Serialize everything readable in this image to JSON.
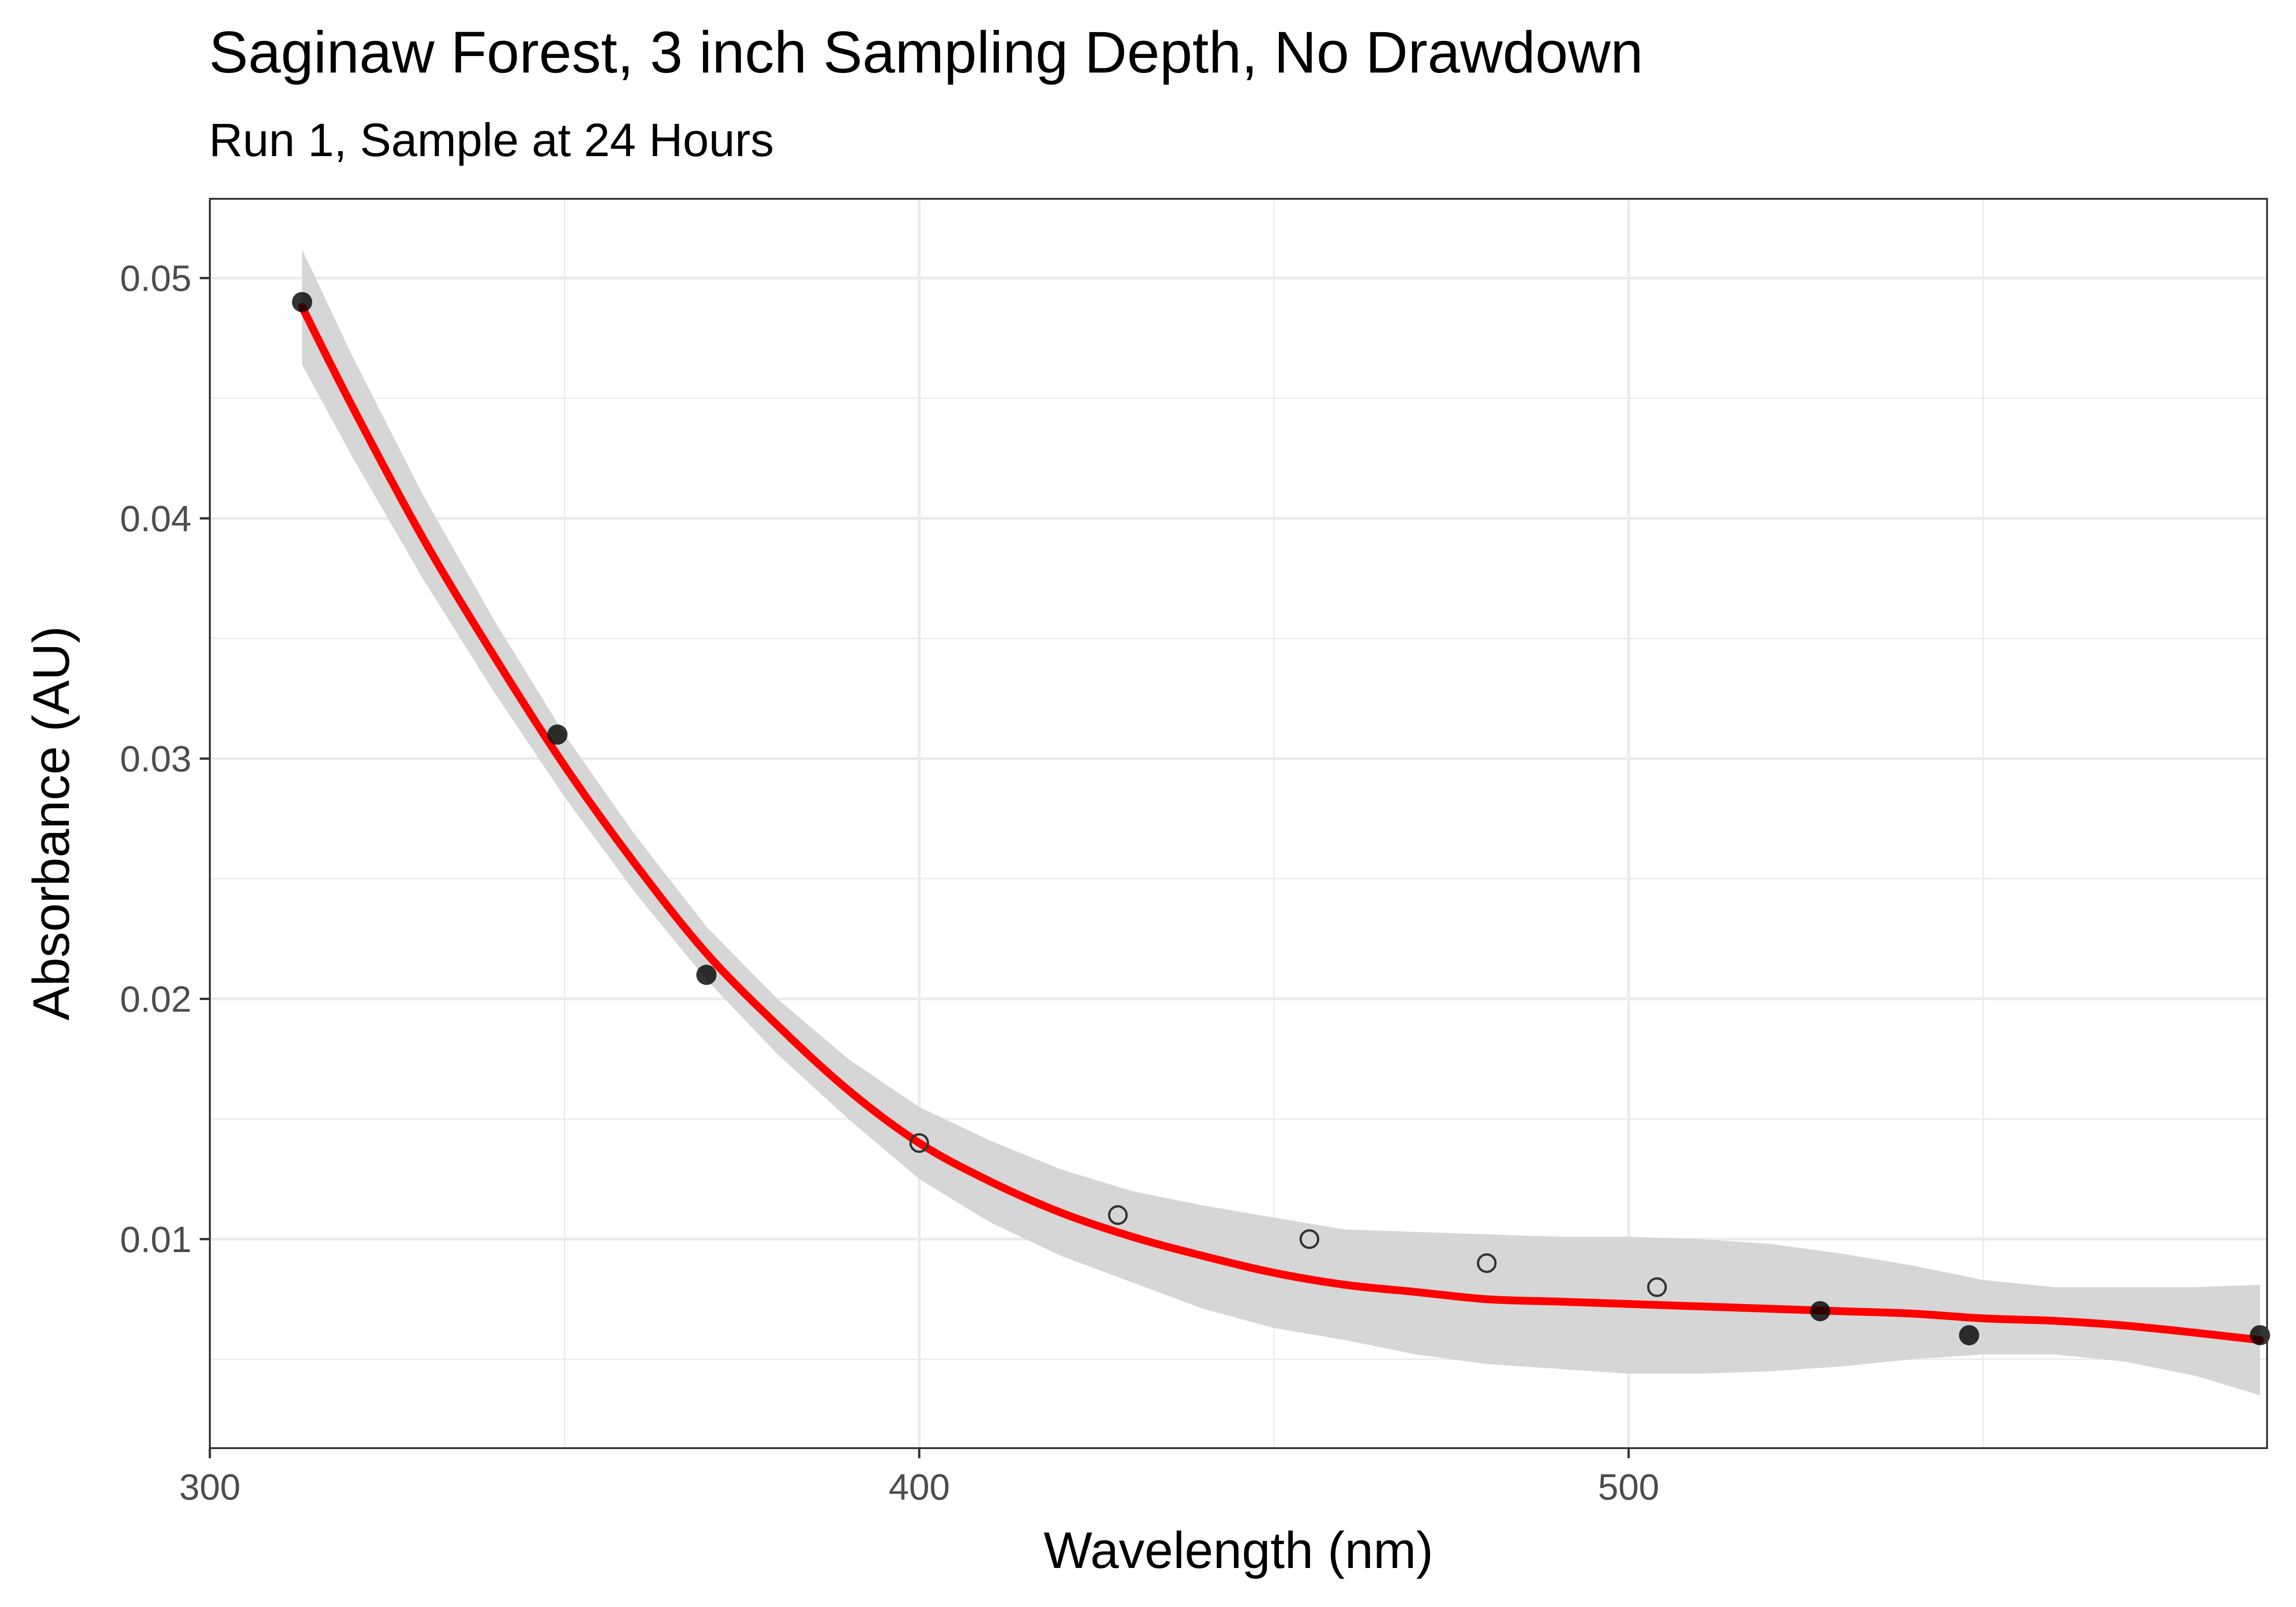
{
  "chart_data": {
    "type": "scatter",
    "title": "Saginaw Forest, 3 inch Sampling Depth, No Drawdown",
    "subtitle": "Run 1, Sample at 24 Hours",
    "xlabel": "Wavelength (nm)",
    "ylabel": "Absorbance (AU)",
    "xlim": [
      300,
      590
    ],
    "ylim": [
      0.0013,
      0.0533
    ],
    "x_ticks": [
      300,
      400,
      500
    ],
    "x_tick_labels": [
      "300",
      "400",
      "500"
    ],
    "x_minor_ticks": [
      350,
      450,
      550
    ],
    "y_ticks": [
      0.01,
      0.02,
      0.03,
      0.04,
      0.05
    ],
    "y_tick_labels": [
      "0.01",
      "0.02",
      "0.03",
      "0.04",
      "0.05"
    ],
    "y_minor_ticks": [
      0.005,
      0.015,
      0.025,
      0.035,
      0.045
    ],
    "grid": true,
    "points": [
      {
        "x": 313,
        "y": 0.049,
        "filled": true
      },
      {
        "x": 349,
        "y": 0.031,
        "filled": true
      },
      {
        "x": 370,
        "y": 0.021,
        "filled": true
      },
      {
        "x": 400,
        "y": 0.014,
        "filled": false
      },
      {
        "x": 428,
        "y": 0.011,
        "filled": false
      },
      {
        "x": 455,
        "y": 0.01,
        "filled": false
      },
      {
        "x": 480,
        "y": 0.009,
        "filled": false
      },
      {
        "x": 504,
        "y": 0.008,
        "filled": false
      },
      {
        "x": 527,
        "y": 0.007,
        "filled": true
      },
      {
        "x": 548,
        "y": 0.006,
        "filled": true
      },
      {
        "x": 589,
        "y": 0.006,
        "filled": true
      }
    ],
    "smooth_fit": {
      "color": "#ff0000",
      "band_color": "#d6d6d6",
      "x": [
        313,
        320,
        330,
        340,
        350,
        360,
        370,
        380,
        390,
        400,
        410,
        420,
        430,
        440,
        450,
        460,
        470,
        480,
        490,
        500,
        510,
        520,
        530,
        540,
        550,
        560,
        570,
        580,
        589
      ],
      "y": [
        0.0488,
        0.0447,
        0.0392,
        0.0343,
        0.0297,
        0.0256,
        0.0219,
        0.0189,
        0.0162,
        0.014,
        0.0124,
        0.0111,
        0.0101,
        0.0093,
        0.0086,
        0.0081,
        0.0078,
        0.0075,
        0.0074,
        0.0073,
        0.0072,
        0.0071,
        0.007,
        0.0069,
        0.0067,
        0.0066,
        0.0064,
        0.0061,
        0.0058
      ],
      "lower": [
        0.0464,
        0.0426,
        0.0375,
        0.0328,
        0.0284,
        0.0244,
        0.0208,
        0.0177,
        0.015,
        0.0125,
        0.0107,
        0.0093,
        0.0082,
        0.0071,
        0.0063,
        0.0058,
        0.0052,
        0.0048,
        0.0046,
        0.0044,
        0.0044,
        0.0045,
        0.0047,
        0.005,
        0.0052,
        0.0052,
        0.0049,
        0.0043,
        0.0035
      ],
      "upper": [
        0.0512,
        0.0468,
        0.041,
        0.0358,
        0.031,
        0.0268,
        0.023,
        0.02,
        0.0175,
        0.0155,
        0.0141,
        0.0129,
        0.012,
        0.0114,
        0.0109,
        0.0104,
        0.0103,
        0.0102,
        0.0101,
        0.0101,
        0.01,
        0.0098,
        0.0094,
        0.0089,
        0.0083,
        0.008,
        0.008,
        0.008,
        0.0081
      ]
    }
  }
}
